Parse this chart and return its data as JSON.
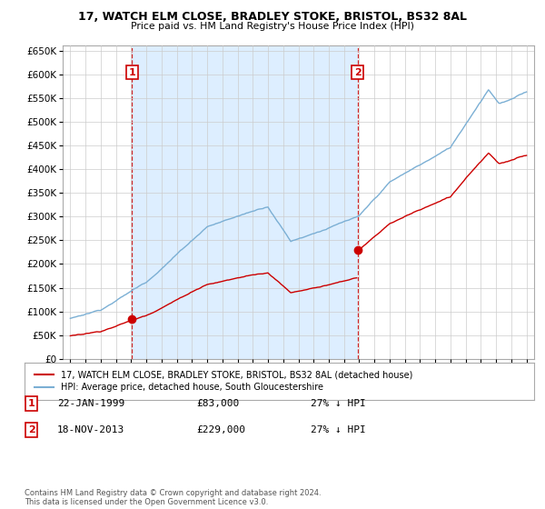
{
  "title1": "17, WATCH ELM CLOSE, BRADLEY STOKE, BRISTOL, BS32 8AL",
  "title2": "Price paid vs. HM Land Registry's House Price Index (HPI)",
  "ylim": [
    0,
    660000
  ],
  "yticks": [
    0,
    50000,
    100000,
    150000,
    200000,
    250000,
    300000,
    350000,
    400000,
    450000,
    500000,
    550000,
    600000,
    650000
  ],
  "sale1_date": "22-JAN-1999",
  "sale1_price": 83000,
  "sale1_label": "27% ↓ HPI",
  "sale2_date": "18-NOV-2013",
  "sale2_price": 229000,
  "sale2_label": "27% ↓ HPI",
  "legend_line1": "17, WATCH ELM CLOSE, BRADLEY STOKE, BRISTOL, BS32 8AL (detached house)",
  "legend_line2": "HPI: Average price, detached house, South Gloucestershire",
  "footer": "Contains HM Land Registry data © Crown copyright and database right 2024.\nThis data is licensed under the Open Government Licence v3.0.",
  "sale1_color": "#cc0000",
  "hpi_color": "#7bafd4",
  "shade_color": "#ddeeff",
  "bg_color": "#ffffff",
  "grid_color": "#cccccc",
  "sale1_year": 1999.06,
  "sale2_year": 2013.9,
  "price1": 83000,
  "price2": 229000,
  "xlim_left": 1994.5,
  "xlim_right": 2025.5
}
